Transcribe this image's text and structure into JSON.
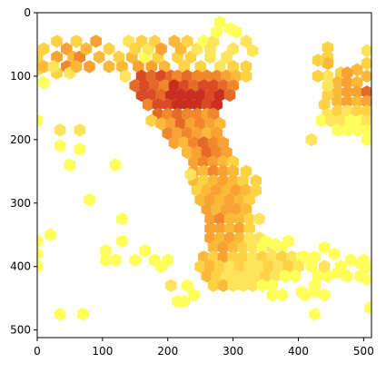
{
  "chart_data": {
    "type": "heatmap",
    "subtype": "hexbin",
    "title": "",
    "xlabel": "",
    "ylabel": "",
    "xlim": [
      0,
      512
    ],
    "ylim": [
      512,
      0
    ],
    "y_inverted": true,
    "grid": false,
    "colormap": [
      "#ffff5a",
      "#fee45a",
      "#fdd245",
      "#fbb93a",
      "#f7a233",
      "#f0872c",
      "#e46a2a",
      "#d94a25",
      "#c92e1f"
    ],
    "x_ticks": [
      "0",
      "100",
      "200",
      "300",
      "400",
      "500"
    ],
    "y_ticks": [
      "0",
      "100",
      "200",
      "300",
      "400",
      "500"
    ],
    "x_tick_values": [
      0,
      100,
      200,
      300,
      400,
      500
    ],
    "y_tick_values": [
      0,
      100,
      200,
      300,
      400,
      500
    ],
    "hex_spacing": 17.5,
    "hex_row_step": 14,
    "bins": [
      [
        0,
        360,
        1
      ],
      [
        0,
        380,
        1
      ],
      [
        0,
        400,
        1
      ],
      [
        0,
        170,
        1
      ],
      [
        0,
        70,
        3
      ],
      [
        0,
        90,
        3
      ],
      [
        10,
        57,
        3
      ],
      [
        10,
        85,
        4
      ],
      [
        10,
        110,
        1
      ],
      [
        30,
        45,
        3
      ],
      [
        30,
        70,
        5
      ],
      [
        30,
        95,
        3
      ],
      [
        25,
        85,
        2
      ],
      [
        45,
        57,
        5
      ],
      [
        45,
        85,
        6
      ],
      [
        55,
        70,
        4
      ],
      [
        50,
        95,
        2
      ],
      [
        60,
        45,
        3
      ],
      [
        65,
        70,
        6
      ],
      [
        60,
        85,
        4
      ],
      [
        75,
        57,
        4
      ],
      [
        80,
        85,
        5
      ],
      [
        90,
        45,
        5
      ],
      [
        95,
        70,
        4
      ],
      [
        110,
        57,
        3
      ],
      [
        110,
        85,
        4
      ],
      [
        125,
        70,
        3
      ],
      [
        130,
        85,
        4
      ],
      [
        135,
        100,
        2
      ],
      [
        140,
        45,
        2
      ],
      [
        145,
        70,
        4
      ],
      [
        150,
        57,
        3
      ],
      [
        155,
        85,
        5
      ],
      [
        160,
        45,
        3
      ],
      [
        165,
        70,
        1
      ],
      [
        170,
        57,
        2
      ],
      [
        175,
        85,
        5
      ],
      [
        180,
        45,
        3
      ],
      [
        185,
        70,
        3
      ],
      [
        190,
        57,
        5
      ],
      [
        195,
        85,
        4
      ],
      [
        210,
        45,
        4
      ],
      [
        215,
        70,
        3
      ],
      [
        220,
        57,
        4
      ],
      [
        225,
        85,
        3
      ],
      [
        230,
        45,
        3
      ],
      [
        235,
        70,
        3
      ],
      [
        245,
        57,
        2
      ],
      [
        250,
        85,
        3
      ],
      [
        255,
        45,
        1
      ],
      [
        265,
        70,
        2
      ],
      [
        265,
        57,
        2
      ],
      [
        270,
        45,
        2
      ],
      [
        275,
        30,
        1
      ],
      [
        280,
        85,
        2
      ],
      [
        290,
        70,
        2
      ],
      [
        300,
        57,
        2
      ],
      [
        300,
        85,
        3
      ],
      [
        295,
        25,
        1
      ],
      [
        305,
        30,
        1
      ],
      [
        320,
        45,
        2
      ],
      [
        330,
        60,
        2
      ],
      [
        320,
        85,
        3
      ],
      [
        160,
        100,
        8
      ],
      [
        175,
        100,
        7
      ],
      [
        190,
        100,
        8
      ],
      [
        205,
        100,
        7
      ],
      [
        215,
        100,
        6
      ],
      [
        230,
        100,
        7
      ],
      [
        245,
        100,
        6
      ],
      [
        260,
        100,
        6
      ],
      [
        275,
        100,
        6
      ],
      [
        290,
        100,
        5
      ],
      [
        305,
        100,
        4
      ],
      [
        320,
        100,
        3
      ],
      [
        150,
        115,
        7
      ],
      [
        165,
        115,
        8
      ],
      [
        180,
        115,
        7
      ],
      [
        195,
        115,
        6
      ],
      [
        210,
        115,
        9
      ],
      [
        225,
        115,
        8
      ],
      [
        240,
        115,
        7
      ],
      [
        255,
        115,
        8
      ],
      [
        270,
        115,
        8
      ],
      [
        285,
        115,
        7
      ],
      [
        300,
        115,
        6
      ],
      [
        160,
        130,
        8
      ],
      [
        175,
        130,
        8
      ],
      [
        190,
        130,
        7
      ],
      [
        205,
        130,
        9
      ],
      [
        220,
        130,
        9
      ],
      [
        235,
        130,
        9
      ],
      [
        250,
        130,
        9
      ],
      [
        265,
        130,
        8
      ],
      [
        280,
        130,
        9
      ],
      [
        295,
        130,
        7
      ],
      [
        170,
        145,
        6
      ],
      [
        185,
        145,
        8
      ],
      [
        200,
        145,
        8
      ],
      [
        215,
        145,
        9
      ],
      [
        230,
        145,
        9
      ],
      [
        245,
        145,
        9
      ],
      [
        260,
        145,
        8
      ],
      [
        275,
        145,
        9
      ],
      [
        185,
        160,
        7
      ],
      [
        200,
        160,
        6
      ],
      [
        215,
        160,
        7
      ],
      [
        230,
        160,
        6
      ],
      [
        245,
        160,
        6
      ],
      [
        260,
        160,
        5
      ],
      [
        270,
        160,
        6
      ],
      [
        175,
        170,
        3
      ],
      [
        190,
        175,
        4
      ],
      [
        205,
        175,
        5
      ],
      [
        220,
        175,
        7
      ],
      [
        235,
        175,
        5
      ],
      [
        250,
        175,
        6
      ],
      [
        265,
        175,
        5
      ],
      [
        280,
        175,
        4
      ],
      [
        200,
        190,
        6
      ],
      [
        215,
        190,
        5
      ],
      [
        230,
        190,
        6
      ],
      [
        245,
        190,
        5
      ],
      [
        260,
        190,
        4
      ],
      [
        275,
        190,
        5
      ],
      [
        210,
        205,
        5
      ],
      [
        225,
        205,
        4
      ],
      [
        240,
        205,
        6
      ],
      [
        255,
        205,
        7
      ],
      [
        270,
        205,
        6
      ],
      [
        285,
        205,
        5
      ],
      [
        230,
        220,
        4
      ],
      [
        245,
        220,
        5
      ],
      [
        260,
        220,
        7
      ],
      [
        275,
        220,
        6
      ],
      [
        290,
        220,
        5
      ],
      [
        240,
        235,
        5
      ],
      [
        255,
        235,
        6
      ],
      [
        270,
        235,
        5
      ],
      [
        285,
        235,
        4
      ],
      [
        300,
        235,
        3
      ],
      [
        240,
        250,
        5
      ],
      [
        255,
        250,
        4
      ],
      [
        270,
        250,
        6
      ],
      [
        285,
        250,
        5
      ],
      [
        300,
        250,
        4
      ],
      [
        320,
        250,
        3
      ],
      [
        240,
        265,
        4
      ],
      [
        255,
        265,
        3
      ],
      [
        270,
        265,
        4
      ],
      [
        285,
        265,
        5
      ],
      [
        300,
        265,
        4
      ],
      [
        315,
        265,
        3
      ],
      [
        335,
        265,
        3
      ],
      [
        245,
        280,
        3
      ],
      [
        260,
        280,
        4
      ],
      [
        275,
        280,
        5
      ],
      [
        290,
        280,
        4
      ],
      [
        305,
        280,
        5
      ],
      [
        320,
        280,
        4
      ],
      [
        335,
        280,
        3
      ],
      [
        250,
        295,
        4
      ],
      [
        265,
        295,
        5
      ],
      [
        280,
        295,
        4
      ],
      [
        295,
        295,
        5
      ],
      [
        310,
        295,
        4
      ],
      [
        325,
        295,
        3
      ],
      [
        260,
        310,
        5
      ],
      [
        275,
        310,
        4
      ],
      [
        290,
        310,
        5
      ],
      [
        305,
        310,
        5
      ],
      [
        320,
        310,
        4
      ],
      [
        265,
        325,
        5
      ],
      [
        280,
        325,
        6
      ],
      [
        295,
        325,
        4
      ],
      [
        310,
        325,
        4
      ],
      [
        325,
        325,
        3
      ],
      [
        340,
        325,
        2
      ],
      [
        265,
        340,
        5
      ],
      [
        280,
        340,
        5
      ],
      [
        295,
        340,
        4
      ],
      [
        310,
        340,
        5
      ],
      [
        325,
        340,
        3
      ],
      [
        265,
        355,
        5
      ],
      [
        280,
        355,
        4
      ],
      [
        295,
        355,
        5
      ],
      [
        310,
        355,
        4
      ],
      [
        325,
        355,
        2
      ],
      [
        340,
        355,
        2
      ],
      [
        270,
        370,
        4
      ],
      [
        285,
        370,
        5
      ],
      [
        300,
        370,
        4
      ],
      [
        315,
        370,
        3
      ],
      [
        330,
        370,
        2
      ],
      [
        345,
        370,
        1
      ],
      [
        360,
        370,
        2
      ],
      [
        375,
        370,
        1
      ],
      [
        255,
        385,
        4
      ],
      [
        270,
        385,
        3
      ],
      [
        285,
        385,
        5
      ],
      [
        300,
        385,
        3
      ],
      [
        315,
        385,
        3
      ],
      [
        330,
        385,
        2
      ],
      [
        345,
        385,
        3
      ],
      [
        360,
        385,
        2
      ],
      [
        375,
        385,
        3
      ],
      [
        390,
        385,
        2
      ],
      [
        405,
        385,
        1
      ],
      [
        250,
        400,
        3
      ],
      [
        265,
        400,
        4
      ],
      [
        280,
        400,
        3
      ],
      [
        295,
        400,
        2
      ],
      [
        310,
        400,
        3
      ],
      [
        325,
        400,
        2
      ],
      [
        340,
        400,
        2
      ],
      [
        355,
        400,
        3
      ],
      [
        370,
        400,
        2
      ],
      [
        385,
        400,
        3
      ],
      [
        400,
        400,
        2
      ],
      [
        260,
        415,
        4
      ],
      [
        275,
        415,
        3
      ],
      [
        290,
        415,
        2
      ],
      [
        305,
        415,
        2
      ],
      [
        320,
        415,
        2
      ],
      [
        335,
        415,
        2
      ],
      [
        350,
        415,
        3
      ],
      [
        365,
        415,
        2
      ],
      [
        380,
        415,
        1
      ],
      [
        395,
        415,
        1
      ],
      [
        270,
        430,
        3
      ],
      [
        285,
        430,
        4
      ],
      [
        300,
        430,
        2
      ],
      [
        315,
        430,
        2
      ],
      [
        330,
        430,
        2
      ],
      [
        345,
        430,
        1
      ],
      [
        360,
        430,
        1
      ],
      [
        350,
        360,
        1
      ],
      [
        365,
        365,
        1
      ],
      [
        385,
        360,
        1
      ],
      [
        410,
        385,
        1
      ],
      [
        425,
        385,
        1
      ],
      [
        440,
        370,
        1
      ],
      [
        455,
        380,
        1
      ],
      [
        465,
        400,
        1
      ],
      [
        480,
        390,
        1
      ],
      [
        495,
        395,
        1
      ],
      [
        505,
        400,
        1
      ],
      [
        430,
        415,
        1
      ],
      [
        445,
        415,
        1
      ],
      [
        460,
        410,
        1
      ],
      [
        475,
        415,
        1
      ],
      [
        495,
        415,
        1
      ],
      [
        505,
        420,
        1
      ],
      [
        420,
        400,
        1
      ],
      [
        440,
        400,
        2
      ],
      [
        425,
        430,
        1
      ],
      [
        360,
        445,
        1
      ],
      [
        375,
        445,
        1
      ],
      [
        405,
        440,
        1
      ],
      [
        425,
        440,
        1
      ],
      [
        410,
        445,
        1
      ],
      [
        440,
        445,
        1
      ],
      [
        205,
        430,
        2
      ],
      [
        215,
        455,
        1
      ],
      [
        225,
        455,
        1
      ],
      [
        230,
        430,
        1
      ],
      [
        240,
        445,
        1
      ],
      [
        200,
        390,
        1
      ],
      [
        190,
        400,
        1
      ],
      [
        180,
        390,
        1
      ],
      [
        150,
        390,
        1
      ],
      [
        165,
        375,
        1
      ],
      [
        120,
        390,
        1
      ],
      [
        105,
        375,
        1
      ],
      [
        130,
        360,
        1
      ],
      [
        105,
        390,
        1
      ],
      [
        70,
        475,
        1
      ],
      [
        35,
        475,
        1
      ],
      [
        20,
        350,
        1
      ],
      [
        80,
        295,
        1
      ],
      [
        130,
        325,
        1
      ],
      [
        65,
        215,
        1
      ],
      [
        50,
        240,
        1
      ],
      [
        35,
        210,
        1
      ],
      [
        35,
        185,
        2
      ],
      [
        65,
        185,
        2
      ],
      [
        120,
        240,
        1
      ],
      [
        235,
        255,
        2
      ],
      [
        280,
        15,
        1
      ],
      [
        425,
        475,
        1
      ],
      [
        510,
        465,
        1
      ],
      [
        500,
        390,
        1
      ],
      [
        445,
        55,
        3
      ],
      [
        445,
        70,
        3
      ],
      [
        445,
        80,
        4
      ],
      [
        465,
        95,
        3
      ],
      [
        460,
        110,
        4
      ],
      [
        475,
        110,
        5
      ],
      [
        490,
        110,
        4
      ],
      [
        505,
        100,
        4
      ],
      [
        505,
        80,
        3
      ],
      [
        505,
        60,
        2
      ],
      [
        490,
        90,
        4
      ],
      [
        475,
        95,
        5
      ],
      [
        460,
        125,
        4
      ],
      [
        475,
        125,
        5
      ],
      [
        490,
        125,
        5
      ],
      [
        505,
        125,
        7
      ],
      [
        445,
        130,
        3
      ],
      [
        460,
        140,
        4
      ],
      [
        475,
        140,
        5
      ],
      [
        490,
        140,
        4
      ],
      [
        505,
        140,
        5
      ],
      [
        440,
        145,
        3
      ],
      [
        445,
        160,
        2
      ],
      [
        460,
        155,
        3
      ],
      [
        475,
        155,
        2
      ],
      [
        490,
        155,
        3
      ],
      [
        505,
        155,
        3
      ],
      [
        435,
        170,
        1
      ],
      [
        450,
        170,
        2
      ],
      [
        465,
        170,
        2
      ],
      [
        480,
        170,
        1
      ],
      [
        495,
        170,
        1
      ],
      [
        505,
        170,
        2
      ],
      [
        460,
        185,
        1
      ],
      [
        475,
        185,
        1
      ],
      [
        490,
        185,
        1
      ],
      [
        505,
        185,
        1
      ],
      [
        420,
        200,
        2
      ],
      [
        505,
        200,
        1
      ],
      [
        445,
        100,
        2
      ],
      [
        445,
        115,
        2
      ],
      [
        430,
        75,
        3
      ],
      [
        430,
        100,
        3
      ]
    ]
  }
}
